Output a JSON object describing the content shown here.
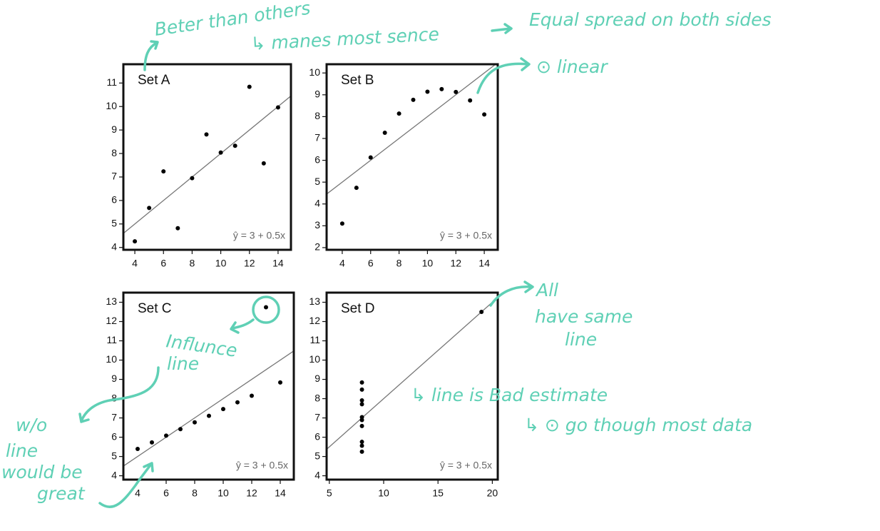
{
  "chart_data": [
    {
      "type": "scatter",
      "title": "Set A",
      "color": "#000000",
      "x": [
        10,
        8,
        13,
        9,
        11,
        14,
        6,
        4,
        12,
        7,
        5
      ],
      "y": [
        8.04,
        6.95,
        7.58,
        8.81,
        8.33,
        9.96,
        7.24,
        4.26,
        10.84,
        4.82,
        5.68
      ],
      "xlim": [
        3.2,
        14.9
      ],
      "ylim": [
        3.9,
        11.8
      ],
      "xticks": [
        4,
        6,
        8,
        10,
        12,
        14
      ],
      "yticks": [
        4,
        5,
        6,
        7,
        8,
        9,
        10,
        11
      ],
      "fit_line": {
        "intercept": 3,
        "slope": 0.5
      },
      "fit_label": "ŷ = 3 + 0.5x"
    },
    {
      "type": "scatter",
      "title": "Set B",
      "color": "#000000",
      "x": [
        10,
        8,
        13,
        9,
        11,
        14,
        6,
        4,
        12,
        7,
        5
      ],
      "y": [
        9.14,
        8.14,
        8.74,
        8.77,
        9.26,
        8.1,
        6.13,
        3.1,
        9.13,
        7.26,
        4.74
      ],
      "xlim": [
        2.9,
        14.95
      ],
      "ylim": [
        1.9,
        10.4
      ],
      "xticks": [
        4,
        6,
        8,
        10,
        12,
        14
      ],
      "yticks": [
        2,
        3,
        4,
        5,
        6,
        7,
        8,
        9,
        10
      ],
      "fit_line": {
        "intercept": 3,
        "slope": 0.5
      },
      "fit_label": "ŷ = 3 + 0.5x"
    },
    {
      "type": "scatter",
      "title": "Set C",
      "color": "#000000",
      "x": [
        10,
        8,
        13,
        9,
        11,
        14,
        6,
        4,
        12,
        7,
        5
      ],
      "y": [
        7.46,
        6.77,
        12.74,
        7.11,
        7.81,
        8.84,
        6.08,
        5.39,
        8.15,
        6.42,
        5.73
      ],
      "xlim": [
        3.0,
        14.95
      ],
      "ylim": [
        3.8,
        13.5
      ],
      "xticks": [
        4,
        6,
        8,
        10,
        12,
        14
      ],
      "yticks": [
        4,
        5,
        6,
        7,
        8,
        9,
        10,
        11,
        12,
        13
      ],
      "fit_line": {
        "intercept": 3,
        "slope": 0.5
      },
      "fit_label": "ŷ = 3 + 0.5x"
    },
    {
      "type": "scatter",
      "title": "Set D",
      "color": "#000000",
      "x": [
        8,
        8,
        8,
        8,
        8,
        8,
        8,
        19,
        8,
        8,
        8
      ],
      "y": [
        6.58,
        5.76,
        7.71,
        8.84,
        8.47,
        7.04,
        5.25,
        12.5,
        5.56,
        7.91,
        6.89
      ],
      "xlim": [
        4.75,
        20.5
      ],
      "ylim": [
        3.8,
        13.5
      ],
      "xticks": [
        5,
        10,
        15,
        20
      ],
      "yticks": [
        4,
        5,
        6,
        7,
        8,
        9,
        10,
        11,
        12,
        13
      ],
      "fit_line": {
        "intercept": 3,
        "slope": 0.5
      },
      "fit_label": "ŷ = 3 + 0.5x"
    }
  ],
  "annotations": [
    "Beter than others",
    "↳ manes most sence",
    "Equal spread on both sides",
    "⊙ linear",
    "Influnce",
    "line",
    "All",
    "have same",
    "line",
    "↳ line is Bad estimate",
    "↳ ⊙ go though most data",
    "w/o",
    "line",
    "would be",
    "great"
  ]
}
